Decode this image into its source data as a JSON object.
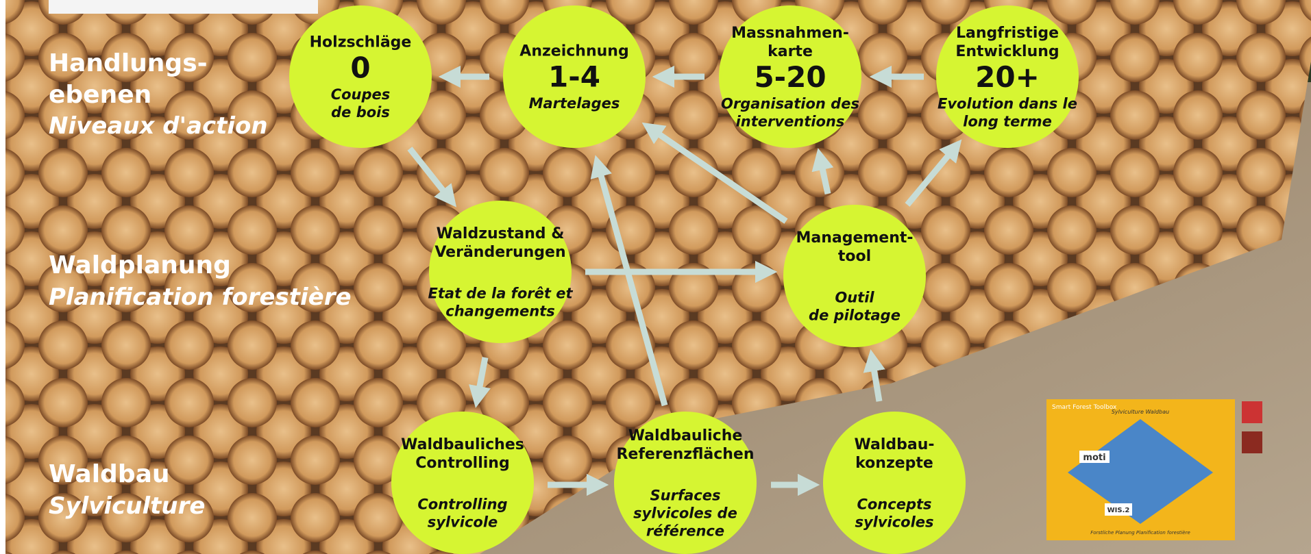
{
  "left_labels": [
    {
      "de": [
        "Handlungs-",
        "ebenen"
      ],
      "fr": "Niveaux d'action"
    },
    {
      "de": [
        "Waldplanung"
      ],
      "fr": "Planification forestière"
    },
    {
      "de": [
        "Waldbau"
      ],
      "fr": "Sylviculture"
    }
  ],
  "nodes": [
    {
      "title": [
        "Holzschläge"
      ],
      "value": "0",
      "subtitle": [
        "Coupes",
        "de bois"
      ]
    },
    {
      "title": [
        "Anzeichnung"
      ],
      "value": "1-4",
      "subtitle": [
        "Martelages"
      ]
    },
    {
      "title": [
        "Massnahmen-",
        "karte"
      ],
      "value": "5-20",
      "subtitle": [
        "Organisation des",
        "interventions"
      ]
    },
    {
      "title": [
        "Langfristige",
        "Entwicklung"
      ],
      "value": "20+",
      "subtitle": [
        "Evolution dans le",
        "long terme"
      ]
    },
    {
      "title": [
        "Waldzustand &",
        "Veränderungen"
      ],
      "subtitle": [
        "Etat de la forêt et",
        "changements"
      ]
    },
    {
      "title": [
        "Management-",
        "tool"
      ],
      "subtitle": [
        "Outil",
        "de pilotage"
      ]
    },
    {
      "title": [
        "Waldbauliches",
        "Controlling"
      ],
      "subtitle": [
        "Controlling",
        "sylvicole"
      ]
    },
    {
      "title": [
        "Waldbauliche",
        "Referenzflächen"
      ],
      "subtitle": [
        "Surfaces",
        "sylvicoles de",
        "référence"
      ]
    },
    {
      "title": [
        "Waldbau-",
        "konzepte"
      ],
      "subtitle": [
        "Concepts",
        "sylvicoles"
      ]
    }
  ],
  "toolbox": {
    "title": "Smart Forest Toolbox",
    "top": "Sylviculture Waldbau",
    "tools": [
      "moti",
      "WIS.2"
    ],
    "bottom": "Forstliche Planung Planification forestière"
  }
}
